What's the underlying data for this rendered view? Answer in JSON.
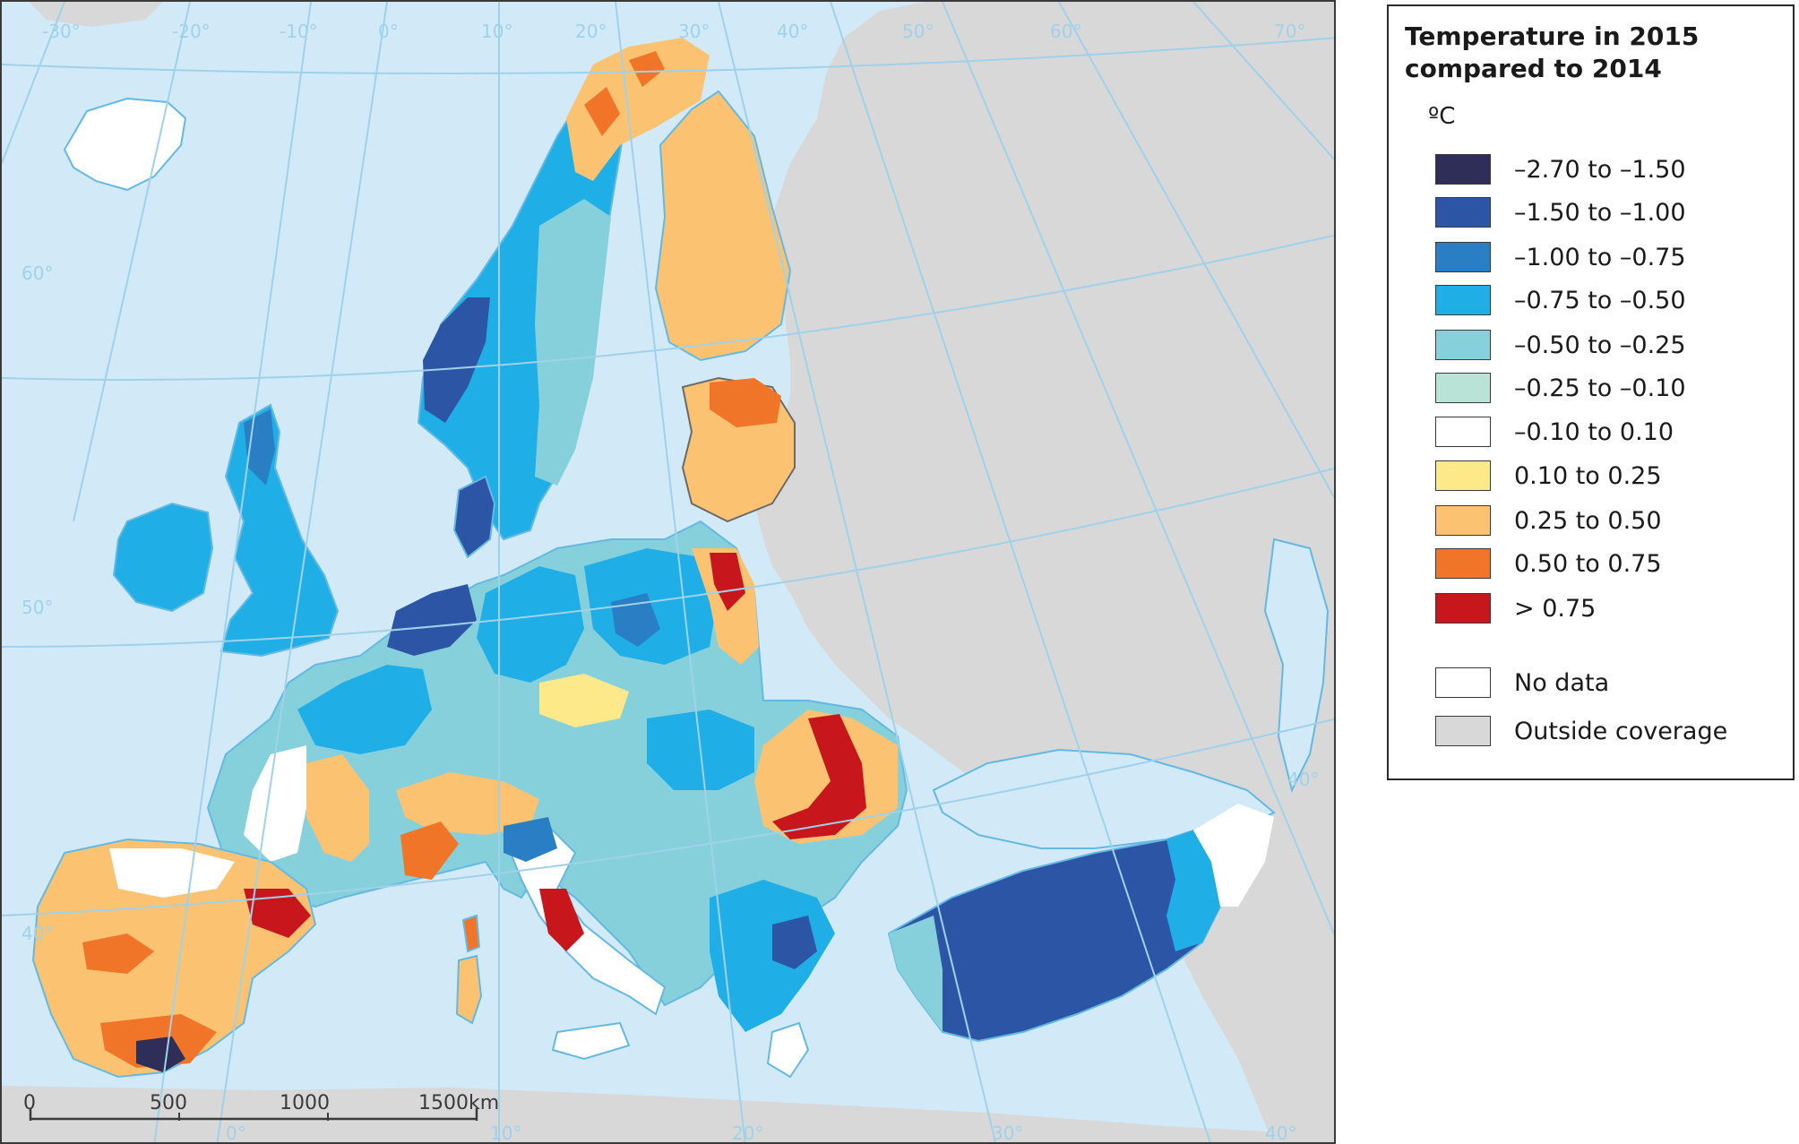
{
  "map": {
    "graticule_labels": {
      "top": [
        "-30°",
        "-20°",
        "-10°",
        "0°",
        "10°",
        "20°",
        "30°",
        "40°",
        "50°",
        "60°",
        "70°"
      ],
      "left": [
        "60°",
        "50°",
        "40°"
      ],
      "right": [
        "40°"
      ],
      "bottom": [
        "0°",
        "10°",
        "20°",
        "30°",
        "40°"
      ]
    },
    "scale_bar": {
      "ticks": [
        "0",
        "500",
        "1000",
        "1500km"
      ]
    }
  },
  "legend": {
    "title": "Temperature in 2015\ncompared to 2014",
    "unit": "ºC",
    "classes": [
      {
        "label": "–2.70 to –1.50",
        "color": "#2e2e59"
      },
      {
        "label": "–1.50 to –1.00",
        "color": "#2d55a6"
      },
      {
        "label": "–1.00 to –0.75",
        "color": "#2a7fc4"
      },
      {
        "label": "–0.75 to –0.50",
        "color": "#20aee6"
      },
      {
        "label": "–0.50 to –0.25",
        "color": "#86d0dc"
      },
      {
        "label": "–0.25 to –0.10",
        "color": "#b9e3d6"
      },
      {
        "label": "–0.10 to 0.10",
        "color": "#ffffff"
      },
      {
        "label": "0.10 to 0.25",
        "color": "#fde98a"
      },
      {
        "label": "0.25 to 0.50",
        "color": "#fbc371"
      },
      {
        "label": "0.50 to 0.75",
        "color": "#f07528"
      },
      {
        "label": "> 0.75",
        "color": "#c8161d"
      }
    ],
    "extra": [
      {
        "label": "No data",
        "color": "#ffffff"
      },
      {
        "label": "Outside coverage",
        "color": "#d8d8d8"
      }
    ]
  },
  "colors": {
    "sea": "#d2eaf8",
    "outside": "#d8d8d8",
    "border": "#6a6a6a",
    "coast": "#63b9e4",
    "graticule": "#9fd2ea"
  }
}
